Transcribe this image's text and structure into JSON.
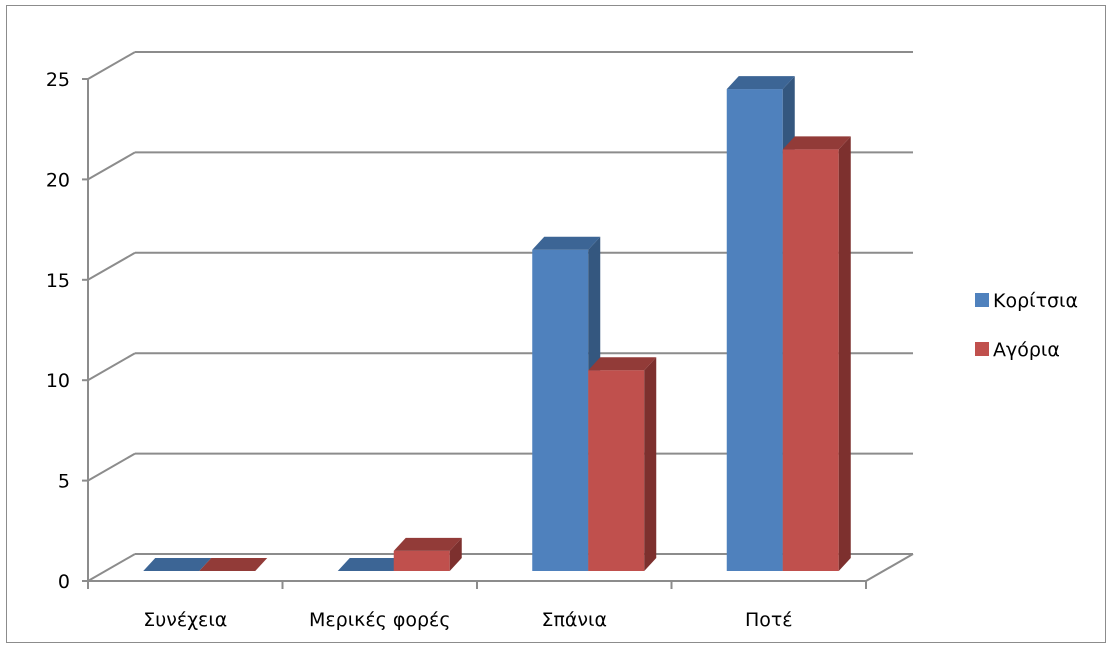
{
  "chart_data": {
    "type": "bar",
    "title": "",
    "xlabel": "",
    "ylabel": "",
    "categories": [
      "Συνέχεια",
      "Μερικές φορές",
      "Σπάνια",
      "Ποτέ"
    ],
    "series": [
      {
        "name": "Κορίτσια",
        "values": [
          0,
          0,
          16,
          24
        ]
      },
      {
        "name": "Αγόρια",
        "values": [
          0,
          1,
          10,
          21
        ]
      }
    ],
    "ylim": [
      0,
      25
    ],
    "yticks": [
      "0",
      "5",
      "10",
      "15",
      "20",
      "25"
    ],
    "grid": true,
    "legend_position": "right",
    "style": "3d-clustered-column"
  },
  "colors": {
    "series": [
      {
        "front": "#4f81bd",
        "side": "#34577f",
        "top": "#3c6595"
      },
      {
        "front": "#c0504d",
        "side": "#7d302e",
        "top": "#923b38"
      }
    ],
    "grid": "#8c8c8c"
  }
}
